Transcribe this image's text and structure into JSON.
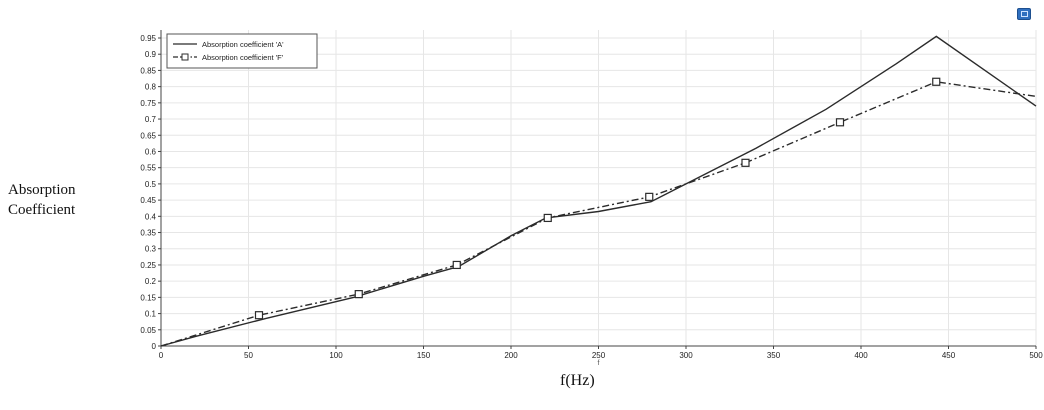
{
  "toolbar": {
    "icon": "screenshot-icon"
  },
  "chart_data": {
    "type": "line",
    "title": "",
    "xlabel": "f(Hz)",
    "x_axis_small_label": "f",
    "ylabel": [
      "Absorption",
      "Coefficient"
    ],
    "xlim": [
      0,
      500
    ],
    "ylim": [
      0,
      0.95
    ],
    "xticks": [
      0,
      50,
      100,
      150,
      200,
      250,
      300,
      350,
      400,
      450,
      500
    ],
    "yticks": [
      0,
      0.05,
      0.1,
      0.15,
      0.2,
      0.25,
      0.3,
      0.35,
      0.4,
      0.45,
      0.5,
      0.55,
      0.6,
      0.65,
      0.7,
      0.75,
      0.8,
      0.85,
      0.9,
      0.95
    ],
    "grid": true,
    "legend_position": "top-left",
    "series": [
      {
        "name": "Absorption coefficient 'A'",
        "style": "solid",
        "x": [
          0,
          20,
          60,
          110,
          150,
          170,
          200,
          220,
          250,
          280,
          300,
          340,
          380,
          420,
          443,
          500
        ],
        "y": [
          0,
          0.03,
          0.085,
          0.15,
          0.215,
          0.245,
          0.34,
          0.395,
          0.415,
          0.445,
          0.5,
          0.61,
          0.73,
          0.87,
          0.955,
          0.74
        ]
      },
      {
        "name": "Absorption coefficient 'F'",
        "style": "dash-dot",
        "marker": "square",
        "x": [
          0,
          56,
          113,
          169,
          221,
          279,
          334,
          388,
          443,
          500
        ],
        "y": [
          0,
          0.095,
          0.16,
          0.25,
          0.395,
          0.46,
          0.565,
          0.69,
          0.815,
          0.77
        ],
        "markers_x": [
          56,
          113,
          169,
          221,
          279,
          334,
          388,
          443
        ]
      }
    ]
  }
}
